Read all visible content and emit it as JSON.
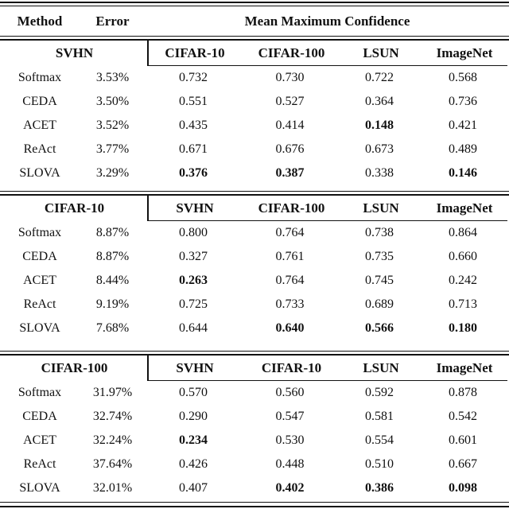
{
  "table": {
    "header": {
      "method": "Method",
      "error": "Error",
      "mmc": "Mean Maximum Confidence"
    },
    "sections": [
      {
        "dataset": "SVHN",
        "ood_headers": [
          "CIFAR-10",
          "CIFAR-100",
          "LSUN",
          "ImageNet"
        ],
        "rows": [
          {
            "method": "Softmax",
            "error": "3.53%",
            "values": [
              "0.732",
              "0.730",
              "0.722",
              "0.568"
            ],
            "bold": [
              false,
              false,
              false,
              false
            ]
          },
          {
            "method": "CEDA",
            "error": "3.50%",
            "values": [
              "0.551",
              "0.527",
              "0.364",
              "0.736"
            ],
            "bold": [
              false,
              false,
              false,
              false
            ]
          },
          {
            "method": "ACET",
            "error": "3.52%",
            "values": [
              "0.435",
              "0.414",
              "0.148",
              "0.421"
            ],
            "bold": [
              false,
              false,
              true,
              false
            ]
          },
          {
            "method": "ReAct",
            "error": "3.77%",
            "values": [
              "0.671",
              "0.676",
              "0.673",
              "0.489"
            ],
            "bold": [
              false,
              false,
              false,
              false
            ]
          },
          {
            "method": "SLOVA",
            "error": "3.29%",
            "values": [
              "0.376",
              "0.387",
              "0.338",
              "0.146"
            ],
            "bold": [
              true,
              true,
              false,
              true
            ]
          }
        ]
      },
      {
        "dataset": "CIFAR-10",
        "ood_headers": [
          "SVHN",
          "CIFAR-100",
          "LSUN",
          "ImageNet"
        ],
        "rows": [
          {
            "method": "Softmax",
            "error": "8.87%",
            "values": [
              "0.800",
              "0.764",
              "0.738",
              "0.864"
            ],
            "bold": [
              false,
              false,
              false,
              false
            ]
          },
          {
            "method": "CEDA",
            "error": "8.87%",
            "values": [
              "0.327",
              "0.761",
              "0.735",
              "0.660"
            ],
            "bold": [
              false,
              false,
              false,
              false
            ]
          },
          {
            "method": "ACET",
            "error": "8.44%",
            "values": [
              "0.263",
              "0.764",
              "0.745",
              "0.242"
            ],
            "bold": [
              true,
              false,
              false,
              false
            ]
          },
          {
            "method": "ReAct",
            "error": "9.19%",
            "values": [
              "0.725",
              "0.733",
              "0.689",
              "0.713"
            ],
            "bold": [
              false,
              false,
              false,
              false
            ]
          },
          {
            "method": "SLOVA",
            "error": "7.68%",
            "values": [
              "0.644",
              "0.640",
              "0.566",
              "0.180"
            ],
            "bold": [
              false,
              true,
              true,
              true
            ]
          }
        ]
      },
      {
        "dataset": "CIFAR-100",
        "ood_headers": [
          "SVHN",
          "CIFAR-10",
          "LSUN",
          "ImageNet"
        ],
        "rows": [
          {
            "method": "Softmax",
            "error": "31.97%",
            "values": [
              "0.570",
              "0.560",
              "0.592",
              "0.878"
            ],
            "bold": [
              false,
              false,
              false,
              false
            ]
          },
          {
            "method": "CEDA",
            "error": "32.74%",
            "values": [
              "0.290",
              "0.547",
              "0.581",
              "0.542"
            ],
            "bold": [
              false,
              false,
              false,
              false
            ]
          },
          {
            "method": "ACET",
            "error": "32.24%",
            "values": [
              "0.234",
              "0.530",
              "0.554",
              "0.601"
            ],
            "bold": [
              true,
              false,
              false,
              false
            ]
          },
          {
            "method": "ReAct",
            "error": "37.64%",
            "values": [
              "0.426",
              "0.448",
              "0.510",
              "0.667"
            ],
            "bold": [
              false,
              false,
              false,
              false
            ]
          },
          {
            "method": "SLOVA",
            "error": "32.01%",
            "values": [
              "0.407",
              "0.402",
              "0.386",
              "0.098"
            ],
            "bold": [
              false,
              true,
              true,
              true
            ]
          }
        ]
      }
    ]
  }
}
